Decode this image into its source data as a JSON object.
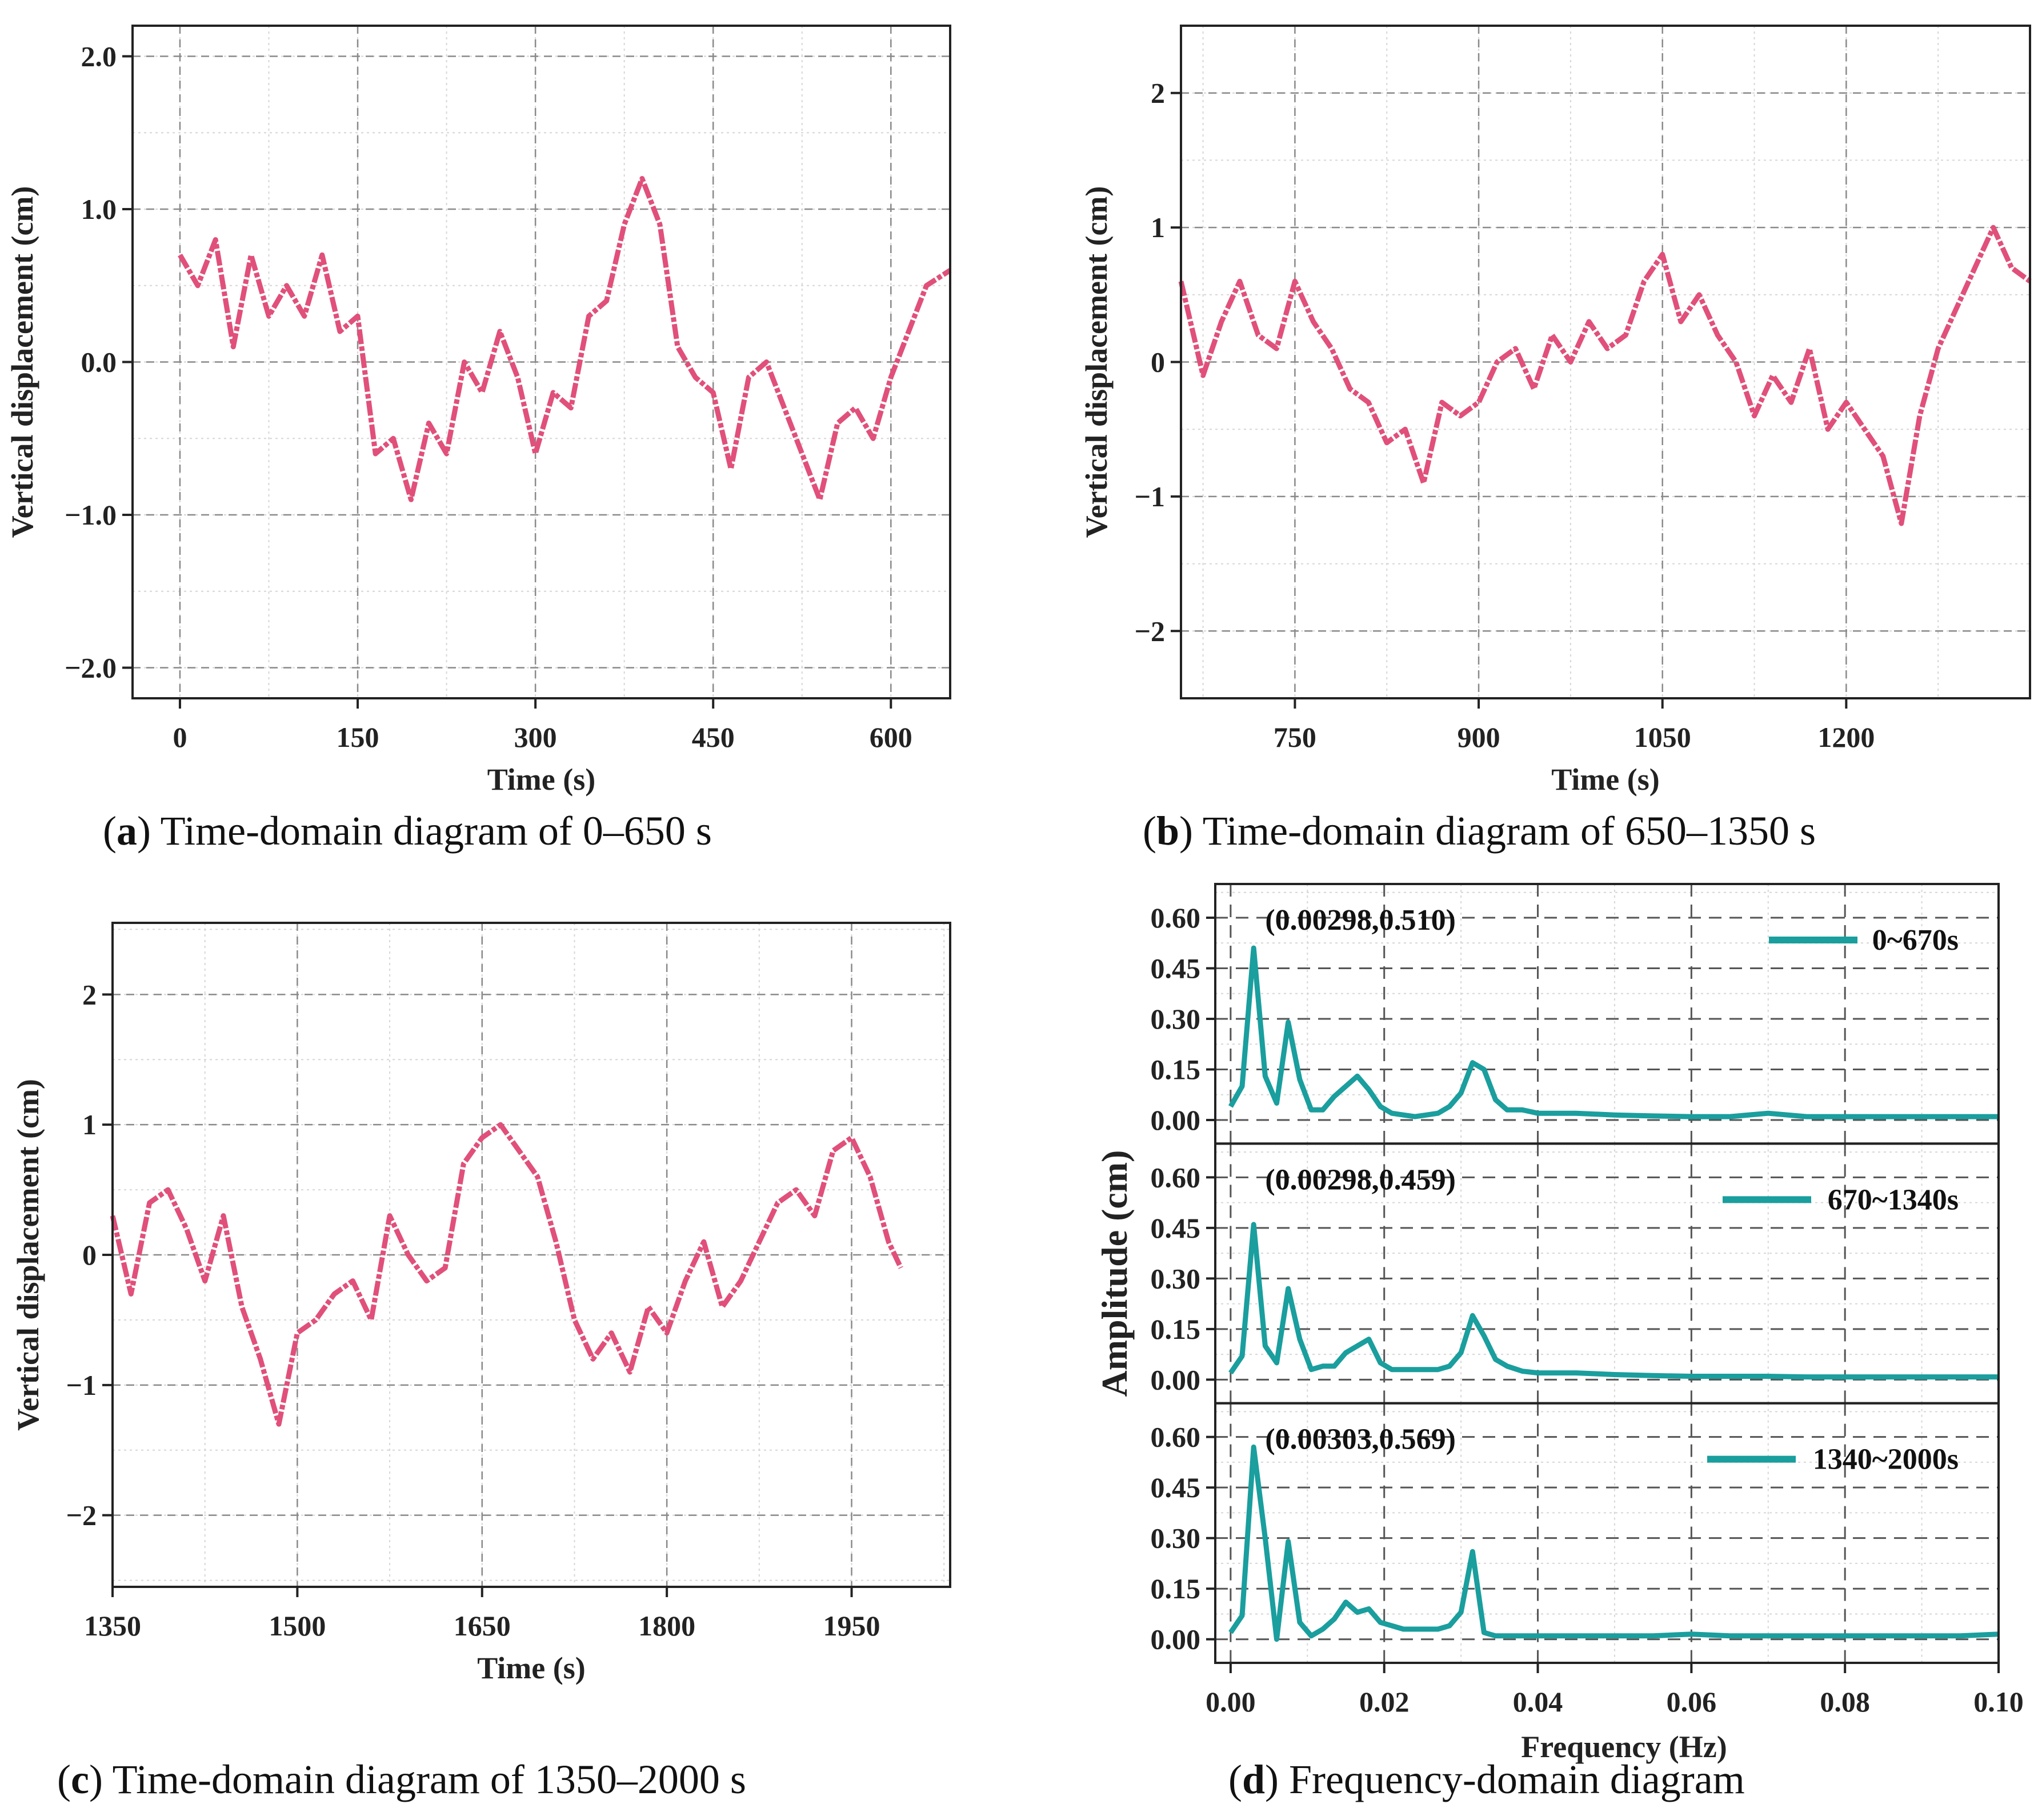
{
  "chart_data": [
    {
      "id": "a",
      "type": "line",
      "caption_letter": "a",
      "caption": " Time-domain diagram of 0–650 s",
      "xlabel": "Time (s)",
      "ylabel": "Vertical displacement (cm)",
      "xlim": [
        -40,
        650
      ],
      "ylim": [
        -2.2,
        2.2
      ],
      "xticks": [
        0,
        150,
        300,
        450,
        600
      ],
      "xtick_labels": [
        "0",
        "150",
        "300",
        "450",
        "600"
      ],
      "yticks": [
        -2.0,
        -1.0,
        0.0,
        1.0,
        2.0
      ],
      "ytick_labels": [
        "−2.0",
        "−1.0",
        "0.0",
        "1.0",
        "2.0"
      ],
      "color": "#E0507A",
      "series": [
        {
          "name": "Vertical displacement",
          "x": [
            0,
            15,
            30,
            45,
            60,
            75,
            90,
            105,
            120,
            135,
            150,
            165,
            180,
            195,
            210,
            225,
            240,
            255,
            270,
            285,
            300,
            315,
            330,
            345,
            360,
            375,
            390,
            405,
            420,
            435,
            450,
            465,
            480,
            495,
            510,
            525,
            540,
            555,
            570,
            585,
            600,
            615,
            630,
            650
          ],
          "y": [
            0.7,
            0.5,
            0.8,
            0.1,
            0.7,
            0.3,
            0.5,
            0.3,
            0.7,
            0.2,
            0.3,
            -0.6,
            -0.5,
            -0.9,
            -0.4,
            -0.6,
            0.0,
            -0.2,
            0.2,
            -0.1,
            -0.6,
            -0.2,
            -0.3,
            0.3,
            0.4,
            0.9,
            1.2,
            0.9,
            0.1,
            -0.1,
            -0.2,
            -0.7,
            -0.1,
            0.0,
            -0.3,
            -0.6,
            -0.9,
            -0.4,
            -0.3,
            -0.5,
            -0.1,
            0.2,
            0.5,
            0.6
          ]
        }
      ]
    },
    {
      "id": "b",
      "type": "line",
      "caption_letter": "b",
      "caption": " Time-domain diagram of 650–1350 s",
      "xlabel": "Time (s)",
      "ylabel": "Vertical displacement (cm)",
      "xlim": [
        657,
        1350
      ],
      "ylim": [
        -2.5,
        2.5
      ],
      "xticks": [
        750,
        900,
        1050,
        1200
      ],
      "xtick_labels": [
        "750",
        "900",
        "1050",
        "1200"
      ],
      "yticks": [
        -2,
        -1,
        0,
        1,
        2
      ],
      "ytick_labels": [
        "−2",
        "−1",
        "0",
        "1",
        "2"
      ],
      "color": "#E0507A",
      "series": [
        {
          "name": "Vertical displacement",
          "x": [
            657,
            675,
            690,
            705,
            720,
            735,
            750,
            765,
            780,
            795,
            810,
            825,
            840,
            855,
            870,
            885,
            900,
            915,
            930,
            945,
            960,
            975,
            990,
            1005,
            1020,
            1035,
            1050,
            1065,
            1080,
            1095,
            1110,
            1125,
            1140,
            1155,
            1170,
            1185,
            1200,
            1215,
            1230,
            1245,
            1260,
            1275,
            1290,
            1305,
            1320,
            1335,
            1350
          ],
          "y": [
            0.6,
            -0.1,
            0.3,
            0.6,
            0.2,
            0.1,
            0.6,
            0.3,
            0.1,
            -0.2,
            -0.3,
            -0.6,
            -0.5,
            -0.9,
            -0.3,
            -0.4,
            -0.3,
            0.0,
            0.1,
            -0.2,
            0.2,
            0.0,
            0.3,
            0.1,
            0.2,
            0.6,
            0.8,
            0.3,
            0.5,
            0.2,
            0.0,
            -0.4,
            -0.1,
            -0.3,
            0.1,
            -0.5,
            -0.3,
            -0.5,
            -0.7,
            -1.2,
            -0.4,
            0.1,
            0.4,
            0.7,
            1.0,
            0.7,
            0.6
          ]
        }
      ]
    },
    {
      "id": "c",
      "type": "line",
      "caption_letter": "c",
      "caption": " Time-domain diagram of 1350–2000 s",
      "xlabel": "Time (s)",
      "ylabel": "Vertical displacement (cm)",
      "xlim": [
        1350,
        2030
      ],
      "ylim": [
        -2.55,
        2.55
      ],
      "xticks": [
        1350,
        1500,
        1650,
        1800,
        1950
      ],
      "xtick_labels": [
        "1350",
        "1500",
        "1650",
        "1800",
        "1950"
      ],
      "yticks": [
        -2,
        -1,
        0,
        1,
        2
      ],
      "ytick_labels": [
        "−2",
        "−1",
        "0",
        "1",
        "2"
      ],
      "color": "#E0507A",
      "series": [
        {
          "name": "Vertical displacement",
          "x": [
            1350,
            1365,
            1380,
            1395,
            1410,
            1425,
            1440,
            1455,
            1470,
            1485,
            1500,
            1515,
            1530,
            1545,
            1560,
            1575,
            1590,
            1605,
            1620,
            1635,
            1650,
            1665,
            1680,
            1695,
            1710,
            1725,
            1740,
            1755,
            1770,
            1785,
            1800,
            1815,
            1830,
            1845,
            1860,
            1875,
            1890,
            1905,
            1920,
            1935,
            1950,
            1965,
            1980,
            1990
          ],
          "y": [
            0.3,
            -0.3,
            0.4,
            0.5,
            0.2,
            -0.2,
            0.3,
            -0.4,
            -0.8,
            -1.3,
            -0.6,
            -0.5,
            -0.3,
            -0.2,
            -0.5,
            0.3,
            0.0,
            -0.2,
            -0.1,
            0.7,
            0.9,
            1.0,
            0.8,
            0.6,
            0.1,
            -0.5,
            -0.8,
            -0.6,
            -0.9,
            -0.4,
            -0.6,
            -0.2,
            0.1,
            -0.4,
            -0.2,
            0.1,
            0.4,
            0.5,
            0.3,
            0.8,
            0.9,
            0.6,
            0.1,
            -0.1
          ]
        }
      ]
    },
    {
      "id": "d",
      "type": "line",
      "caption_letter": "d",
      "caption": " Frequency-domain diagram",
      "xlabel": "Frequency (Hz)",
      "ylabel": "Amplitude (cm)",
      "xlim": [
        -0.002,
        0.1
      ],
      "ylim": [
        -0.07,
        0.7
      ],
      "xticks": [
        0.0,
        0.02,
        0.04,
        0.06,
        0.08,
        0.1
      ],
      "xtick_labels": [
        "0.00",
        "0.02",
        "0.04",
        "0.06",
        "0.08",
        "0.10"
      ],
      "yticks": [
        0.0,
        0.15,
        0.3,
        0.45,
        0.6
      ],
      "ytick_labels": [
        "0.00",
        "0.15",
        "0.30",
        "0.45",
        "0.60"
      ],
      "color": "#1A9E9E",
      "x": [
        0.0,
        0.0015,
        0.003,
        0.0045,
        0.006,
        0.0075,
        0.009,
        0.0105,
        0.012,
        0.0135,
        0.015,
        0.0165,
        0.018,
        0.0195,
        0.021,
        0.0225,
        0.024,
        0.0255,
        0.027,
        0.0285,
        0.03,
        0.0315,
        0.033,
        0.0345,
        0.036,
        0.038,
        0.04,
        0.045,
        0.05,
        0.055,
        0.06,
        0.065,
        0.07,
        0.075,
        0.08,
        0.085,
        0.09,
        0.095,
        0.1
      ],
      "series": [
        {
          "name": "0~670s",
          "peak_label": "(0.00298,0.510)",
          "values": [
            0.04,
            0.1,
            0.51,
            0.13,
            0.05,
            0.29,
            0.12,
            0.03,
            0.03,
            0.07,
            0.1,
            0.13,
            0.09,
            0.04,
            0.02,
            0.015,
            0.01,
            0.015,
            0.02,
            0.04,
            0.08,
            0.17,
            0.15,
            0.06,
            0.03,
            0.03,
            0.02,
            0.02,
            0.015,
            0.012,
            0.01,
            0.01,
            0.02,
            0.01,
            0.01,
            0.01,
            0.01,
            0.01,
            0.01
          ]
        },
        {
          "name": "670~1340s",
          "peak_label": "(0.00298,0.459)",
          "values": [
            0.02,
            0.07,
            0.46,
            0.1,
            0.05,
            0.27,
            0.12,
            0.03,
            0.04,
            0.04,
            0.08,
            0.1,
            0.12,
            0.05,
            0.03,
            0.03,
            0.03,
            0.03,
            0.03,
            0.04,
            0.08,
            0.19,
            0.13,
            0.06,
            0.04,
            0.025,
            0.02,
            0.02,
            0.015,
            0.012,
            0.01,
            0.01,
            0.01,
            0.008,
            0.008,
            0.008,
            0.008,
            0.008,
            0.008
          ]
        },
        {
          "name": "1340~2000s",
          "peak_label": "(0.00303,0.569)",
          "values": [
            0.02,
            0.07,
            0.57,
            0.3,
            0.0,
            0.29,
            0.05,
            0.01,
            0.03,
            0.06,
            0.11,
            0.08,
            0.09,
            0.05,
            0.04,
            0.03,
            0.03,
            0.03,
            0.03,
            0.04,
            0.08,
            0.26,
            0.02,
            0.01,
            0.01,
            0.01,
            0.01,
            0.01,
            0.01,
            0.01,
            0.015,
            0.01,
            0.01,
            0.01,
            0.01,
            0.01,
            0.01,
            0.01,
            0.015
          ]
        }
      ]
    }
  ]
}
